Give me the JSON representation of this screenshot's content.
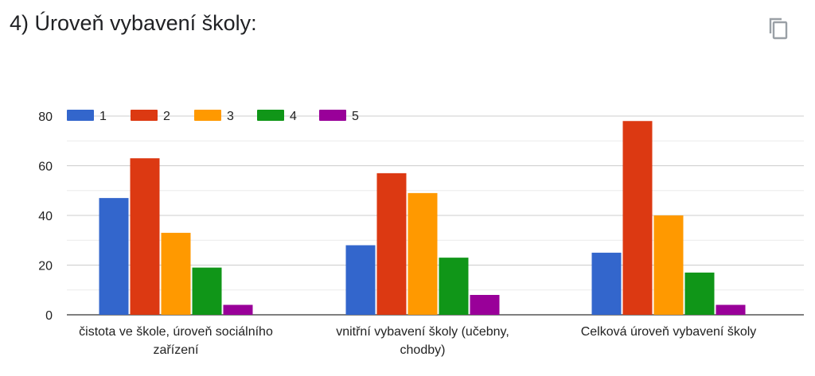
{
  "question": {
    "title": "4) Úroveň vybavení školy:"
  },
  "icons": {
    "copy": "copy-icon"
  },
  "colors": {
    "series": [
      "#3366cc",
      "#dc3912",
      "#ff9900",
      "#109618",
      "#990099"
    ],
    "grid": "#cccccc",
    "baseline": "#333333",
    "text": "#222222"
  },
  "chart_data": {
    "type": "bar",
    "title": "",
    "xlabel": "",
    "ylabel": "",
    "ylim": [
      0,
      80
    ],
    "yticks": [
      0,
      20,
      40,
      60,
      80
    ],
    "grid": true,
    "legend_position": "top-left",
    "categories": [
      [
        "čistota ve škole, úroveň sociálního",
        "zařízení"
      ],
      [
        "vnitřní vybavení školy (učebny,",
        "chodby)"
      ],
      [
        "Celková úroveň vybavení školy"
      ]
    ],
    "series": [
      {
        "name": "1",
        "values": [
          47,
          28,
          25
        ]
      },
      {
        "name": "2",
        "values": [
          63,
          57,
          78
        ]
      },
      {
        "name": "3",
        "values": [
          33,
          49,
          40
        ]
      },
      {
        "name": "4",
        "values": [
          19,
          23,
          17
        ]
      },
      {
        "name": "5",
        "values": [
          4,
          8,
          4
        ]
      }
    ]
  }
}
